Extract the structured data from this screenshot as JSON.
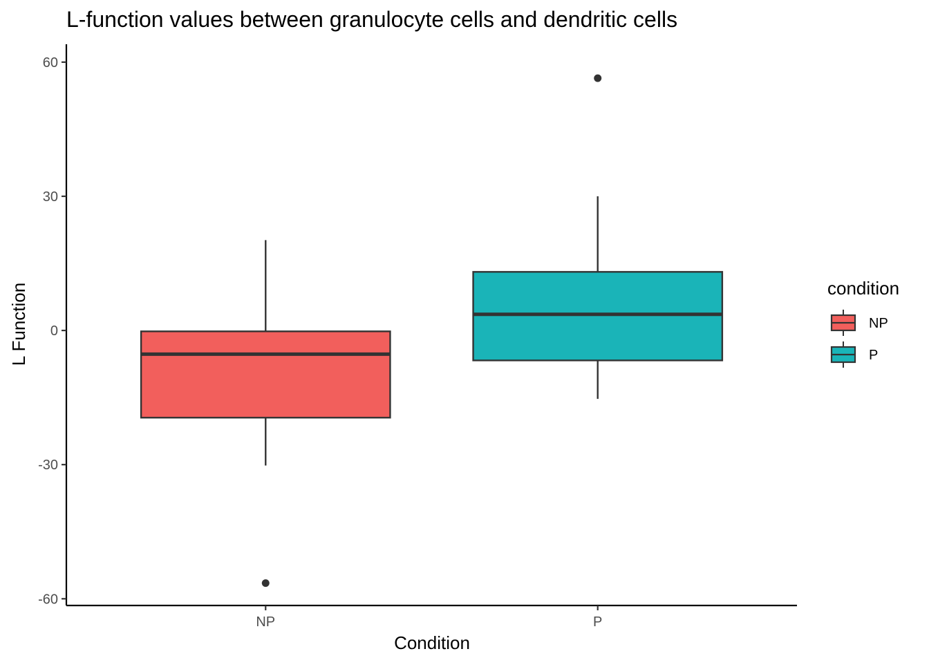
{
  "chart_data": {
    "type": "box",
    "title": "L-function values between granulocyte cells and dendritic cells",
    "xlabel": "Condition",
    "ylabel": "L Function",
    "ylim": [
      -61.5,
      64
    ],
    "yticks": [
      60,
      30,
      0,
      -30,
      -60
    ],
    "ytick_labels": [
      "60",
      "30",
      "0",
      "-30",
      "-60"
    ],
    "categories": [
      "NP",
      "P"
    ],
    "grid": false,
    "legend": {
      "title": "condition",
      "position": "right",
      "entries": [
        "NP",
        "P"
      ]
    },
    "series": [
      {
        "name": "NP",
        "color": "#F25F5C",
        "whisker_low": -30.2,
        "q1": -19.5,
        "median": -5.3,
        "q3": -0.2,
        "whisker_high": 20.2,
        "outliers": [
          -56.5
        ]
      },
      {
        "name": "P",
        "color": "#1AB4B8",
        "whisker_low": -15.3,
        "q1": -6.7,
        "median": 3.6,
        "q3": 13.1,
        "whisker_high": 30.0,
        "outliers": [
          56.4
        ]
      }
    ]
  }
}
